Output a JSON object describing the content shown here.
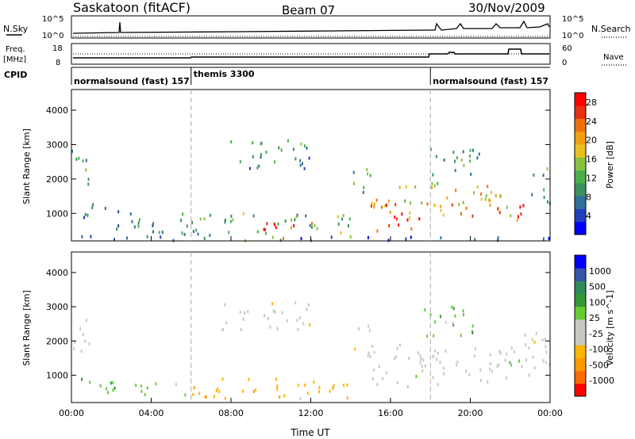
{
  "header": {
    "station": "Saskatoon (fitACF)",
    "beam": "Beam 07",
    "date": "30/Nov/2009"
  },
  "strip1": {
    "left_label": "N.Sky",
    "left_ticks": [
      "10^5",
      "10^0"
    ],
    "right_ticks": [
      "10^5",
      "10^0"
    ],
    "right_label": "N.Search"
  },
  "strip2": {
    "left_label_top": "Freq.",
    "left_label_unit": "[MHz]",
    "left_ticks": [
      "18",
      "8"
    ],
    "right_ticks": [
      "60",
      "0"
    ],
    "right_label": "Nave"
  },
  "cpid": {
    "label": "CPID",
    "segments": [
      {
        "name": "normalsound (fast) 157",
        "start_hour": 0
      },
      {
        "name": "themis 3300",
        "start_hour": 6
      },
      {
        "name": "normalsound (fast) 157",
        "start_hour": 18
      }
    ]
  },
  "colors": {
    "power": [
      "#0000ff",
      "#2040c0",
      "#2f6f9a",
      "#3a9060",
      "#4bb04b",
      "#88c040",
      "#e8c020",
      "#f0a010",
      "#f07010",
      "#e83010",
      "#ff0000"
    ],
    "velocity": [
      "#ff0000",
      "#ff6a00",
      "#ff9a00",
      "#ffb600",
      "#c8c8c0",
      "#c8c8c0",
      "#66cc33",
      "#339933",
      "#2e8b57",
      "#3355aa",
      "#0000ff"
    ],
    "grey": "#c0c0b8"
  },
  "chart_data": [
    {
      "type": "heatmap",
      "name": "power",
      "ylabel": "Slant Range [km]",
      "yticks": [
        "1000",
        "2000",
        "3000",
        "4000"
      ],
      "ylim": [
        200,
        4600
      ],
      "xlim": [
        0,
        24
      ],
      "colorbar": {
        "label": "Power [dB]",
        "ticks": [
          "4",
          "8",
          "12",
          "16",
          "20",
          "24",
          "28"
        ],
        "range": [
          0,
          30
        ]
      },
      "regions": [
        {
          "t": [
            0.0,
            1.0
          ],
          "r": [
            1700,
            2900
          ],
          "v": 10
        },
        {
          "t": [
            0.0,
            1.8
          ],
          "r": [
            800,
            1300
          ],
          "v": 6
        },
        {
          "t": [
            2.0,
            6.0
          ],
          "r": [
            350,
            1050
          ],
          "v": 8
        },
        {
          "t": [
            6.0,
            14.3
          ],
          "r": [
            300,
            1000
          ],
          "v": 12
        },
        {
          "t": [
            9.0,
            14.0
          ],
          "r": [
            480,
            720
          ],
          "v": 26
        },
        {
          "t": [
            8.0,
            12.0
          ],
          "r": [
            200,
            330
          ],
          "v": 24
        },
        {
          "t": [
            7.5,
            12.0
          ],
          "r": [
            2300,
            3150
          ],
          "v": 9
        },
        {
          "t": [
            14.0,
            15.0
          ],
          "r": [
            1500,
            2600
          ],
          "v": 12
        },
        {
          "t": [
            15.0,
            18.5
          ],
          "r": [
            1200,
            1900
          ],
          "v": 18
        },
        {
          "t": [
            15.0,
            17.5
          ],
          "r": [
            450,
            1000
          ],
          "v": 28
        },
        {
          "t": [
            15.0,
            18.0
          ],
          "r": [
            800,
            1300
          ],
          "v": 22
        },
        {
          "t": [
            17.5,
            20.5
          ],
          "r": [
            2100,
            3000
          ],
          "v": 10
        },
        {
          "t": [
            18.0,
            22.0
          ],
          "r": [
            900,
            1800
          ],
          "v": 19
        },
        {
          "t": [
            19.0,
            21.5
          ],
          "r": [
            900,
            1300
          ],
          "v": 24
        },
        {
          "t": [
            22.0,
            23.0
          ],
          "r": [
            600,
            1300
          ],
          "v": 26
        },
        {
          "t": [
            23.0,
            24.0
          ],
          "r": [
            1200,
            2400
          ],
          "v": 12
        },
        {
          "t": [
            0.0,
            24.0
          ],
          "r": [
            200,
            330
          ],
          "v": 5
        }
      ]
    },
    {
      "type": "heatmap",
      "name": "velocity",
      "ylabel": "Slant Range [km]",
      "yticks": [
        "1000",
        "2000",
        "3000",
        "4000"
      ],
      "ylim": [
        200,
        4600
      ],
      "xlim": [
        0,
        24
      ],
      "xticks": [
        "00:00",
        "04:00",
        "08:00",
        "12:00",
        "16:00",
        "20:00",
        "00:00"
      ],
      "xlabel": "Time UT",
      "colorbar": {
        "label": "Velocity [m s^-1]",
        "ticks": [
          "1000",
          "500",
          "100",
          "25",
          "-25",
          "-100",
          "-500",
          "-1000"
        ]
      },
      "regions": [
        {
          "t": [
            0.0,
            1.0
          ],
          "r": [
            1700,
            2900
          ],
          "c": 4
        },
        {
          "t": [
            0.0,
            2.0
          ],
          "r": [
            400,
            900
          ],
          "c": 6
        },
        {
          "t": [
            2.0,
            6.0
          ],
          "r": [
            400,
            800
          ],
          "c": 6
        },
        {
          "t": [
            6.0,
            14.3
          ],
          "r": [
            300,
            900
          ],
          "c": 3
        },
        {
          "t": [
            7.5,
            12.0
          ],
          "r": [
            2300,
            3150
          ],
          "c": 4
        },
        {
          "t": [
            14.0,
            15.0
          ],
          "r": [
            1500,
            2600
          ],
          "c": 4
        },
        {
          "t": [
            15.0,
            18.5
          ],
          "r": [
            600,
            1900
          ],
          "c": 5
        },
        {
          "t": [
            17.5,
            20.5
          ],
          "r": [
            2100,
            3000
          ],
          "c": 6
        },
        {
          "t": [
            18.0,
            23.0
          ],
          "r": [
            800,
            1800
          ],
          "c": 5
        },
        {
          "t": [
            22.0,
            24.0
          ],
          "r": [
            1200,
            2400
          ],
          "c": 4
        }
      ]
    }
  ]
}
